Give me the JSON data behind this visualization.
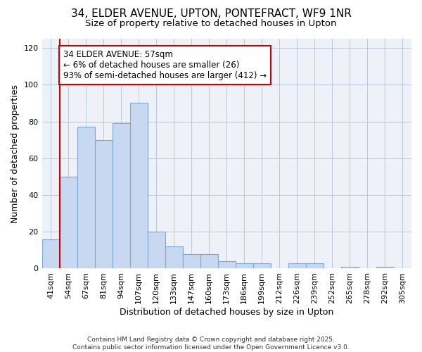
{
  "title_line1": "34, ELDER AVENUE, UPTON, PONTEFRACT, WF9 1NR",
  "title_line2": "Size of property relative to detached houses in Upton",
  "xlabel": "Distribution of detached houses by size in Upton",
  "ylabel": "Number of detached properties",
  "categories": [
    "41sqm",
    "54sqm",
    "67sqm",
    "81sqm",
    "94sqm",
    "107sqm",
    "120sqm",
    "133sqm",
    "147sqm",
    "160sqm",
    "173sqm",
    "186sqm",
    "199sqm",
    "212sqm",
    "226sqm",
    "239sqm",
    "252sqm",
    "265sqm",
    "278sqm",
    "292sqm",
    "305sqm"
  ],
  "values": [
    16,
    50,
    77,
    70,
    79,
    90,
    20,
    12,
    8,
    8,
    4,
    3,
    3,
    0,
    3,
    3,
    0,
    1,
    0,
    1,
    0
  ],
  "bar_color": "#c8d8f0",
  "bar_edge_color": "#7aa8d8",
  "reference_line_x": 1,
  "reference_line_color": "#cc0000",
  "annotation_text": "34 ELDER AVENUE: 57sqm\n← 6% of detached houses are smaller (26)\n93% of semi-detached houses are larger (412) →",
  "annotation_box_color": "#ffffff",
  "annotation_box_edge_color": "#cc0000",
  "ylim": [
    0,
    125
  ],
  "yticks": [
    0,
    20,
    40,
    60,
    80,
    100,
    120
  ],
  "grid_color": "#b8c8e0",
  "fig_bg_color": "#ffffff",
  "plot_bg_color": "#eef2f8",
  "footer_text": "Contains HM Land Registry data © Crown copyright and database right 2025.\nContains public sector information licensed under the Open Government Licence v3.0.",
  "title_fontsize": 11,
  "subtitle_fontsize": 9.5,
  "axis_label_fontsize": 9,
  "tick_fontsize": 8,
  "annotation_fontsize": 8.5,
  "footer_fontsize": 6.5
}
